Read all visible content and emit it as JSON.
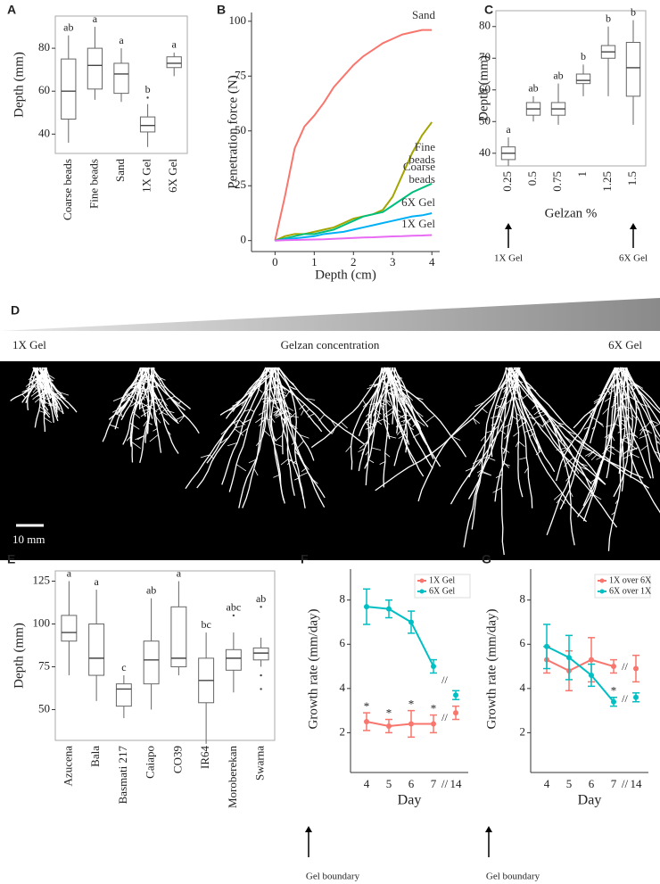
{
  "chart_data": [
    {
      "type": "box",
      "panel": "A",
      "y_label": "Depth (mm)",
      "categories": [
        "Coarse beads",
        "Fine beads",
        "Sand",
        "1X Gel",
        "6X Gel"
      ],
      "boxes": [
        {
          "low": 36,
          "q1": 47,
          "median": 60,
          "q3": 75,
          "high": 86
        },
        {
          "low": 56,
          "q1": 61,
          "median": 72,
          "q3": 80,
          "high": 90
        },
        {
          "low": 55,
          "q1": 59,
          "median": 68,
          "q3": 73,
          "high": 80
        },
        {
          "low": 34,
          "q1": 41,
          "median": 44,
          "q3": 48,
          "high": 54,
          "outliers": [
            57
          ]
        },
        {
          "low": 67,
          "q1": 71,
          "median": 73,
          "q3": 76,
          "high": 78
        }
      ],
      "letters": [
        "ab",
        "a",
        "a",
        "b",
        "a"
      ],
      "ylim": [
        31,
        95
      ],
      "yticks": [
        40,
        60,
        80
      ]
    },
    {
      "type": "line",
      "panel": "B",
      "x_label": "Depth (cm)",
      "y_label": "Penetration force (N)",
      "x": [
        0,
        0.25,
        0.5,
        0.75,
        1,
        1.25,
        1.5,
        1.75,
        2,
        2.25,
        2.5,
        2.75,
        3,
        3.25,
        3.5,
        3.75,
        4
      ],
      "series": [
        {
          "name": "Sand",
          "color": "#F8766D",
          "values": [
            0,
            20,
            42,
            52,
            57,
            63,
            70,
            75,
            80,
            84,
            87,
            90,
            92,
            94,
            95,
            96,
            96
          ]
        },
        {
          "name": "Fine beads",
          "color": "#A3A500",
          "values": [
            0,
            2,
            3,
            3,
            4,
            5,
            6,
            8,
            10,
            11,
            12,
            14,
            20,
            30,
            40,
            48,
            54
          ]
        },
        {
          "name": "Coarse beads",
          "color": "#00BF7D",
          "values": [
            0,
            1,
            2,
            3,
            3,
            4,
            5,
            7,
            9,
            11,
            12,
            13,
            16,
            19,
            22,
            24,
            26
          ]
        },
        {
          "name": "6X Gel",
          "color": "#00B0F6",
          "values": [
            0,
            0.5,
            1,
            1.5,
            2,
            3,
            3.5,
            4,
            5,
            6,
            7,
            8,
            9,
            10,
            11,
            11.5,
            12.5
          ]
        },
        {
          "name": "1X Gel",
          "color": "#E76BF3",
          "values": [
            0,
            0.2,
            0.3,
            0.4,
            0.5,
            0.6,
            0.8,
            1,
            1.2,
            1.4,
            1.5,
            1.7,
            1.9,
            2,
            2.2,
            2.3,
            2.5
          ]
        }
      ],
      "xlim": [
        -0.6,
        4.2
      ],
      "xticks": [
        0,
        1,
        2,
        3,
        4
      ],
      "ylim": [
        -5,
        104
      ],
      "yticks": [
        0,
        25,
        50,
        75,
        100
      ]
    },
    {
      "type": "box",
      "panel": "C",
      "y_label": "Depth (mm)",
      "x_label": "Gelzan %",
      "categories": [
        "0.25",
        "0.5",
        "0.75",
        "1",
        "1.25",
        "1.5"
      ],
      "boxes": [
        {
          "low": 36,
          "q1": 38,
          "median": 40,
          "q3": 42,
          "high": 45
        },
        {
          "low": 50,
          "q1": 52,
          "median": 54,
          "q3": 56,
          "high": 58
        },
        {
          "low": 49,
          "q1": 52,
          "median": 54,
          "q3": 56,
          "high": 62
        },
        {
          "low": 58,
          "q1": 62,
          "median": 63,
          "q3": 65,
          "high": 68
        },
        {
          "low": 58,
          "q1": 70,
          "median": 72,
          "q3": 74,
          "high": 80
        },
        {
          "low": 49,
          "q1": 58,
          "median": 67,
          "q3": 75,
          "high": 82
        }
      ],
      "letters": [
        "a",
        "ab",
        "ab",
        "b",
        "b",
        "b"
      ],
      "arrow_labels": [
        "1X Gel",
        "6X Gel"
      ],
      "ylim": [
        36,
        85
      ],
      "yticks": [
        40,
        50,
        60,
        70,
        80
      ]
    },
    {
      "type": "box",
      "panel": "E",
      "y_label": "Depth (mm)",
      "categories": [
        "Azucena",
        "Bala",
        "Basmati 217",
        "Caiapo",
        "CO39",
        "IR64",
        "Moroberekan",
        "Swarna"
      ],
      "boxes": [
        {
          "low": 70,
          "q1": 90,
          "median": 95,
          "q3": 105,
          "high": 125
        },
        {
          "low": 55,
          "q1": 70,
          "median": 80,
          "q3": 100,
          "high": 120
        },
        {
          "low": 45,
          "q1": 52,
          "median": 62,
          "q3": 65,
          "high": 70
        },
        {
          "low": 50,
          "q1": 65,
          "median": 79,
          "q3": 90,
          "high": 115
        },
        {
          "low": 70,
          "q1": 75,
          "median": 80,
          "q3": 110,
          "high": 125
        },
        {
          "low": 30,
          "q1": 54,
          "median": 67,
          "q3": 80,
          "high": 95
        },
        {
          "low": 60,
          "q1": 73,
          "median": 80,
          "q3": 85,
          "high": 95,
          "outliers": [
            105
          ]
        },
        {
          "low": 75,
          "q1": 79,
          "median": 83,
          "q3": 86,
          "high": 92,
          "outliers": [
            110,
            70,
            62
          ]
        }
      ],
      "letters": [
        "a",
        "a",
        "c",
        "ab",
        "a",
        "bc",
        "abc",
        "ab"
      ],
      "ylim": [
        32,
        131
      ],
      "yticks": [
        50,
        75,
        100,
        125
      ]
    },
    {
      "type": "errorline",
      "panel": "F",
      "x_label": "Day",
      "y_label": "Growth rate (mm/day)",
      "categories": [
        "4",
        "5",
        "6",
        "7",
        "14"
      ],
      "axis_break": "//",
      "arrow_label": "Gel boundary",
      "legend": "top-right",
      "series": [
        {
          "name": "1X Gel",
          "color": "#F8766D",
          "values": [
            2.5,
            2.3,
            2.4,
            2.4,
            2.9
          ],
          "errors": [
            0.4,
            0.3,
            0.6,
            0.4,
            0.3
          ],
          "annotations": [
            "*",
            "*",
            "*",
            "*",
            null
          ]
        },
        {
          "name": "6X Gel",
          "color": "#00BFC4",
          "values": [
            7.7,
            7.6,
            7.0,
            5.0,
            3.7
          ],
          "errors": [
            0.8,
            0.4,
            0.5,
            0.3,
            0.2
          ]
        }
      ],
      "ylim": [
        0.2,
        9.4
      ],
      "yticks": [
        2,
        4,
        6,
        8
      ]
    },
    {
      "type": "errorline",
      "panel": "G",
      "x_label": "Day",
      "y_label": "Growth rate (mm/day)",
      "categories": [
        "4",
        "5",
        "6",
        "7",
        "14"
      ],
      "axis_break": "//",
      "arrow_label": "Gel boundary",
      "legend": "top-right",
      "series": [
        {
          "name": "1X over 6X",
          "color": "#F8766D",
          "values": [
            5.3,
            4.8,
            5.3,
            5.0,
            4.9
          ],
          "errors": [
            0.6,
            0.9,
            1.0,
            0.3,
            0.6
          ]
        },
        {
          "name": "6X over 1X",
          "color": "#00BFC4",
          "values": [
            5.9,
            5.4,
            4.6,
            3.4,
            3.6
          ],
          "errors": [
            1.0,
            1.0,
            0.5,
            0.2,
            0.2
          ],
          "annotations": [
            null,
            null,
            null,
            "*",
            null
          ]
        }
      ],
      "ylim": [
        0.2,
        9.4
      ],
      "yticks": [
        2,
        4,
        6,
        8
      ]
    }
  ],
  "figure_d": {
    "panel": "D",
    "left_label": "1X Gel",
    "center_label": "Gelzan concentration",
    "right_label": "6X Gel",
    "scale_label": "10 mm"
  }
}
